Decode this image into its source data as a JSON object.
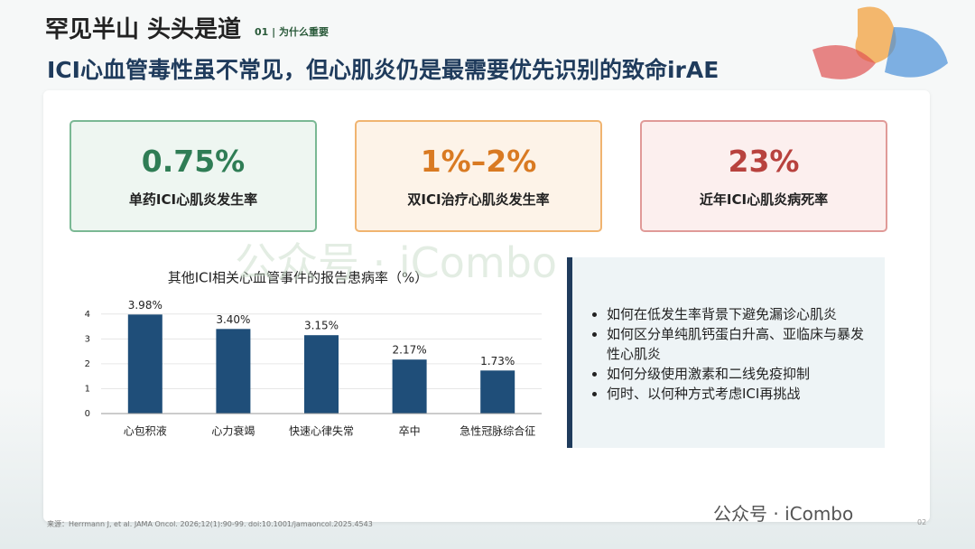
{
  "header": {
    "logo": "罕见半山 头头是道",
    "section": "01 | 为什么重要",
    "title": "ICI心血管毒性虽不常见，但心肌炎仍是最需要优先识别的致命irAE"
  },
  "stats": [
    {
      "value": "0.75%",
      "label": "单药ICI心肌炎发生率"
    },
    {
      "value": "1%–2%",
      "label": "双ICI治疗心肌炎发生率"
    },
    {
      "value": "23%",
      "label": "近年ICI心肌炎病死率"
    }
  ],
  "chart_data": {
    "type": "bar",
    "title": "其他ICI相关心血管事件的报告患病率（%）",
    "categories": [
      "心包积液",
      "心力衰竭",
      "快速心律失常",
      "卒中",
      "急性冠脉综合征"
    ],
    "values": [
      3.98,
      3.4,
      3.15,
      2.17,
      1.73
    ],
    "value_labels": [
      "3.98%",
      "3.40%",
      "3.15%",
      "2.17%",
      "1.73%"
    ],
    "color": "#1f4e79",
    "ylim": [
      0,
      4.5
    ],
    "yticks": [
      0,
      1,
      2,
      3,
      4
    ],
    "grid": true
  },
  "questions": [
    "如何在低发生率背景下避免漏诊心肌炎",
    "如何区分单纯肌钙蛋白升高、亚临床与暴发性心肌炎",
    "如何分级使用激素和二线免疫抑制",
    "何时、以何种方式考虑ICI再挑战"
  ],
  "source": "来源：Herrmann J, et al. JAMA Oncol. 2026;12(1):90-99. doi:10.1001/jamaoncol.2025.4543",
  "watermark": "公众号 · iCombo",
  "page_number": "02"
}
